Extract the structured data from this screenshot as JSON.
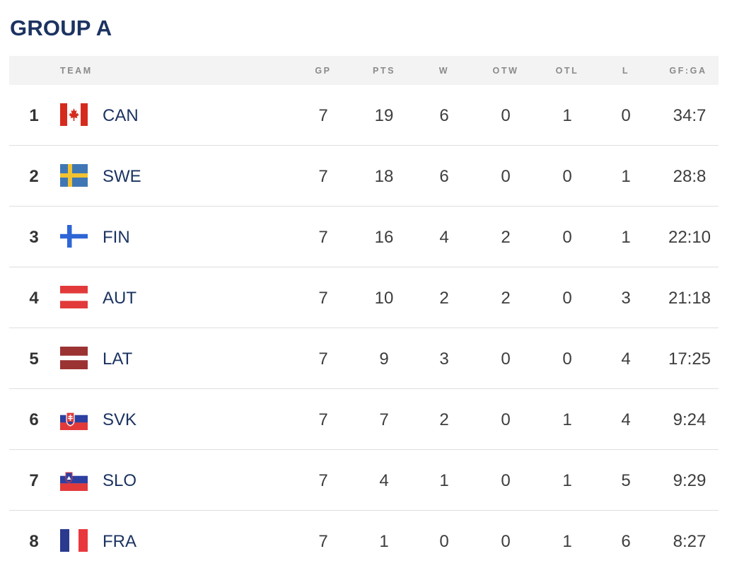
{
  "group": {
    "title": "GROUP A"
  },
  "columns": {
    "team": "TEAM",
    "gp": "GP",
    "pts": "PTS",
    "w": "W",
    "otw": "OTW",
    "otl": "OTL",
    "l": "L",
    "gfga": "GF:GA"
  },
  "rows": [
    {
      "rank": "1",
      "team": "CAN",
      "flag": "canada-flag",
      "gp": "7",
      "pts": "19",
      "w": "6",
      "otw": "0",
      "otl": "1",
      "l": "0",
      "gfga": "34:7"
    },
    {
      "rank": "2",
      "team": "SWE",
      "flag": "sweden-flag",
      "gp": "7",
      "pts": "18",
      "w": "6",
      "otw": "0",
      "otl": "0",
      "l": "1",
      "gfga": "28:8"
    },
    {
      "rank": "3",
      "team": "FIN",
      "flag": "finland-flag",
      "gp": "7",
      "pts": "16",
      "w": "4",
      "otw": "2",
      "otl": "0",
      "l": "1",
      "gfga": "22:10"
    },
    {
      "rank": "4",
      "team": "AUT",
      "flag": "austria-flag",
      "gp": "7",
      "pts": "10",
      "w": "2",
      "otw": "2",
      "otl": "0",
      "l": "3",
      "gfga": "21:18"
    },
    {
      "rank": "5",
      "team": "LAT",
      "flag": "latvia-flag",
      "gp": "7",
      "pts": "9",
      "w": "3",
      "otw": "0",
      "otl": "0",
      "l": "4",
      "gfga": "17:25"
    },
    {
      "rank": "6",
      "team": "SVK",
      "flag": "slovakia-flag",
      "gp": "7",
      "pts": "7",
      "w": "2",
      "otw": "0",
      "otl": "1",
      "l": "4",
      "gfga": "9:24"
    },
    {
      "rank": "7",
      "team": "SLO",
      "flag": "slovenia-flag",
      "gp": "7",
      "pts": "4",
      "w": "1",
      "otw": "0",
      "otl": "1",
      "l": "5",
      "gfga": "9:29"
    },
    {
      "rank": "8",
      "team": "FRA",
      "flag": "france-flag",
      "gp": "7",
      "pts": "1",
      "w": "0",
      "otw": "0",
      "otl": "1",
      "l": "6",
      "gfga": "8:27"
    }
  ],
  "colors": {
    "title": "#1c3361",
    "team_text": "#1c3361",
    "header_bg": "#f3f3f3",
    "header_text": "#8a8a8a",
    "row_divider": "#dedede"
  }
}
